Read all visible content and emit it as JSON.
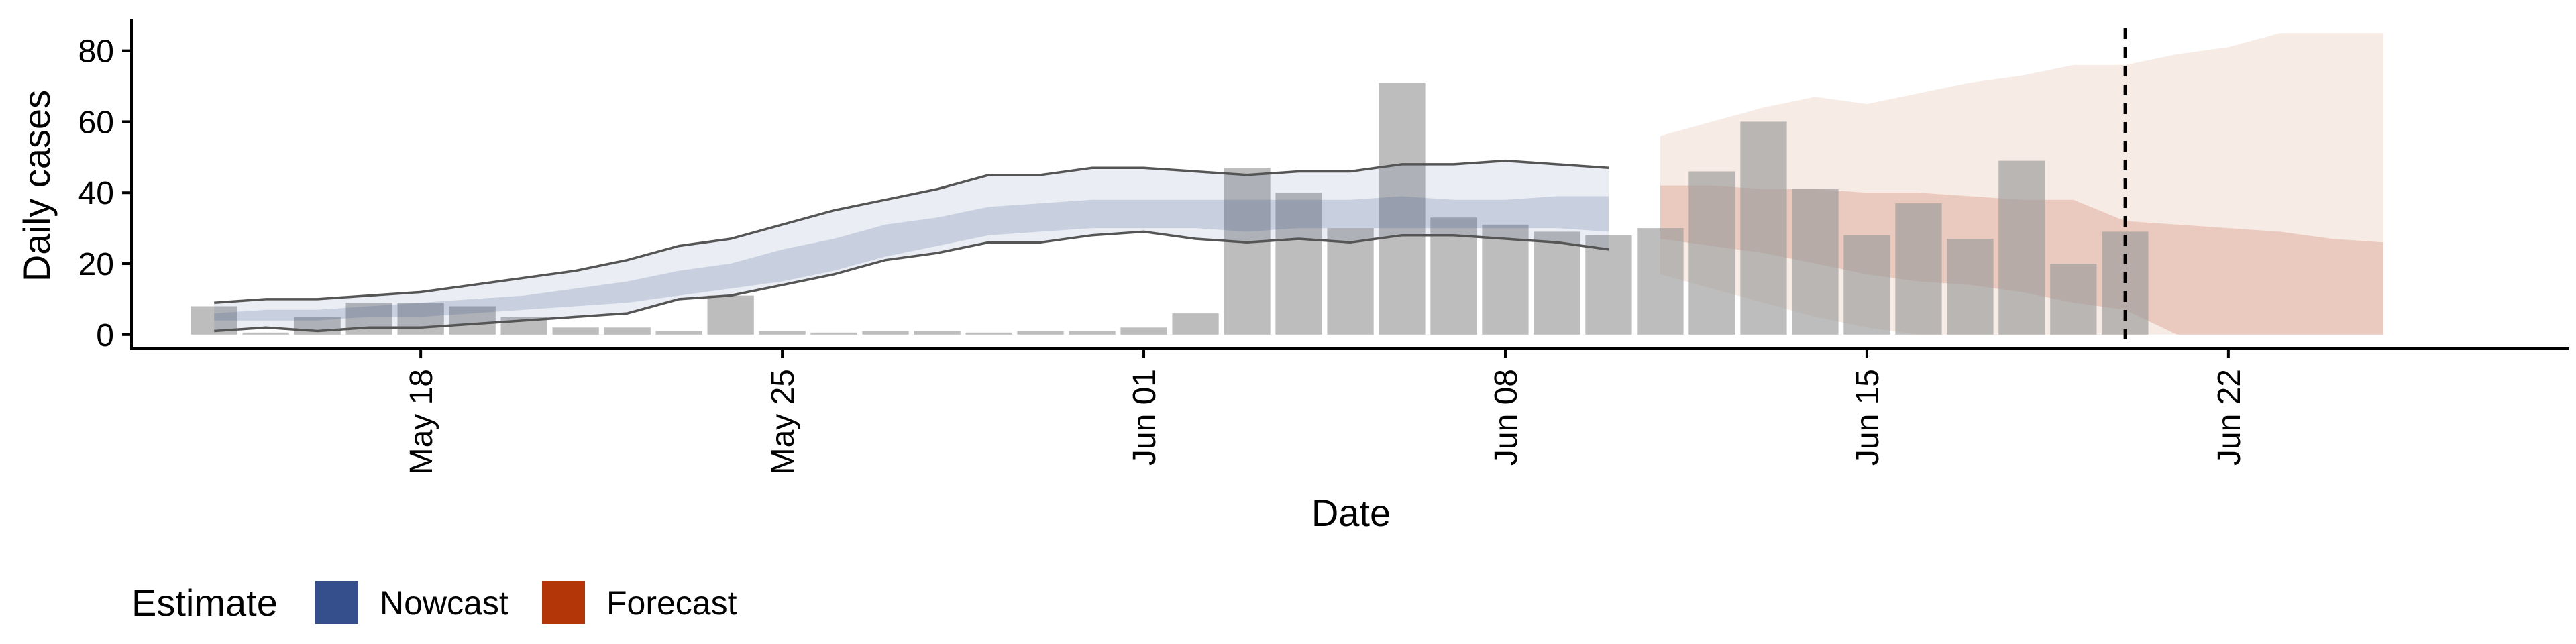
{
  "chart_data": {
    "type": "bar",
    "xlabel": "Date",
    "ylabel": "Daily cases",
    "x_ticks": [
      "May 18",
      "May 25",
      "Jun 01",
      "Jun 08",
      "Jun 15",
      "Jun 22"
    ],
    "y_ticks": [
      "0",
      "20",
      "40",
      "60",
      "80"
    ],
    "ylim": [
      -4,
      89
    ],
    "xlim_days": [
      -1.6,
      45.6
    ],
    "forecast_date": "Jun 20",
    "grid": false,
    "legend": {
      "title": "Estimate",
      "position": "bottom-left",
      "items": [
        {
          "name": "Nowcast",
          "color": "#344f8c"
        },
        {
          "name": "Forecast",
          "color": "#b33609"
        }
      ]
    },
    "colors": {
      "bar": "#999999",
      "nowcast": "#344f8c",
      "forecast": "#b33609",
      "line": "#555555"
    },
    "dates": [
      "May 14",
      "May 15",
      "May 16",
      "May 17",
      "May 18",
      "May 19",
      "May 20",
      "May 21",
      "May 22",
      "May 23",
      "May 24",
      "May 25",
      "May 26",
      "May 27",
      "May 28",
      "May 29",
      "May 30",
      "May 31",
      "Jun 01",
      "Jun 02",
      "Jun 03",
      "Jun 04",
      "Jun 05",
      "Jun 06",
      "Jun 07",
      "Jun 08",
      "Jun 09",
      "Jun 10",
      "Jun 11",
      "Jun 12",
      "Jun 13",
      "Jun 14",
      "Jun 15",
      "Jun 16",
      "Jun 17",
      "Jun 18",
      "Jun 19",
      "Jun 20"
    ],
    "cases": [
      8,
      0,
      5,
      9,
      9,
      8,
      5,
      2,
      2,
      1,
      11,
      1,
      0,
      1,
      1,
      0,
      1,
      1,
      2,
      6,
      47,
      40,
      30,
      71,
      33,
      31,
      29,
      28,
      30,
      46,
      60,
      41,
      28,
      37,
      27,
      49,
      20,
      29
    ],
    "nowcast": {
      "dates": [
        "May 14",
        "May 15",
        "May 16",
        "May 17",
        "May 18",
        "May 19",
        "May 20",
        "May 21",
        "May 22",
        "May 23",
        "May 24",
        "May 25",
        "May 26",
        "May 27",
        "May 28",
        "May 29",
        "May 30",
        "May 31",
        "Jun 01",
        "Jun 02",
        "Jun 03",
        "Jun 04",
        "Jun 05",
        "Jun 06",
        "Jun 07",
        "Jun 08",
        "Jun 09",
        "Jun 10"
      ],
      "upper90": [
        9,
        10,
        10,
        11,
        12,
        14,
        16,
        18,
        21,
        25,
        27,
        31,
        35,
        38,
        41,
        45,
        45,
        47,
        47,
        46,
        45,
        46,
        46,
        48,
        48,
        49,
        48,
        47
      ],
      "upper50": [
        6,
        7,
        7,
        8,
        9,
        10,
        11,
        13,
        15,
        18,
        20,
        24,
        27,
        31,
        33,
        36,
        37,
        38,
        38,
        38,
        38,
        38,
        38,
        39,
        38,
        38,
        39,
        39
      ],
      "lower50": [
        4,
        4,
        4,
        5,
        5,
        6,
        7,
        8,
        9,
        11,
        13,
        15,
        18,
        22,
        25,
        28,
        29,
        30,
        30,
        30,
        29,
        30,
        30,
        30,
        30,
        30,
        30,
        29
      ],
      "lower90": [
        1,
        2,
        1,
        2,
        2,
        3,
        4,
        5,
        6,
        10,
        11,
        14,
        17,
        21,
        23,
        26,
        26,
        28,
        29,
        27,
        26,
        27,
        26,
        28,
        28,
        27,
        26,
        24
      ]
    },
    "forecast": {
      "dates": [
        "Jun 11",
        "Jun 12",
        "Jun 13",
        "Jun 14",
        "Jun 15",
        "Jun 16",
        "Jun 17",
        "Jun 18",
        "Jun 19",
        "Jun 20",
        "Jun 21",
        "Jun 22",
        "Jun 23",
        "Jun 24",
        "Jun 25"
      ],
      "upper90": [
        56,
        60,
        64,
        67,
        65,
        68,
        71,
        73,
        76,
        76,
        79,
        81,
        85,
        85,
        85
      ],
      "upper50": [
        42,
        42,
        41,
        41,
        40,
        40,
        39,
        38,
        38,
        32,
        31,
        30,
        29,
        27,
        26
      ],
      "lower50": [
        27,
        25,
        23,
        20,
        17,
        15,
        14,
        12,
        9,
        7,
        0,
        0,
        0,
        0,
        0
      ],
      "lower90": [
        17,
        13,
        9,
        5,
        2,
        0,
        0,
        0,
        0,
        0,
        0,
        0,
        0,
        0,
        0
      ]
    }
  }
}
